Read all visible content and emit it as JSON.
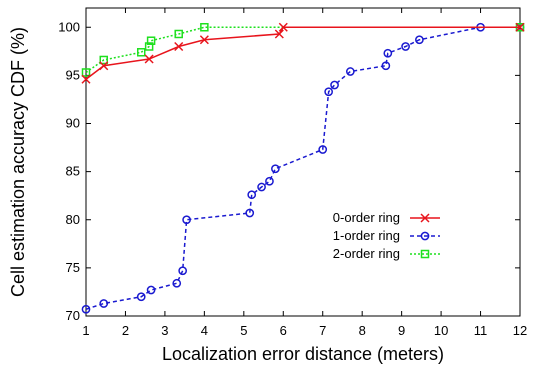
{
  "chart_data": {
    "type": "line",
    "xlabel": "Localization error distance (meters)",
    "ylabel": "Cell estimation accuracy CDF (%)",
    "xlim": [
      1,
      12
    ],
    "ylim": [
      70,
      102
    ],
    "xticks": [
      1,
      2,
      3,
      4,
      5,
      6,
      7,
      8,
      9,
      10,
      11,
      12
    ],
    "yticks": [
      70,
      75,
      80,
      85,
      90,
      95,
      100
    ],
    "grid": false,
    "legend_position": "right-middle",
    "series": [
      {
        "name": "0-order ring",
        "color": "#e8141c",
        "marker": "x",
        "dash": "solid",
        "x": [
          1.0,
          1.45,
          2.6,
          3.35,
          4.0,
          5.9,
          6.0,
          12.0
        ],
        "y": [
          94.6,
          96.0,
          96.7,
          98.0,
          98.7,
          99.3,
          100.0,
          100.0
        ]
      },
      {
        "name": "1-order ring",
        "color": "#1a1ad0",
        "marker": "circle",
        "dash": "dashed",
        "x": [
          1.0,
          1.45,
          2.4,
          2.65,
          3.3,
          3.45,
          3.55,
          5.15,
          5.2,
          5.45,
          5.65,
          5.8,
          7.0,
          7.15,
          7.3,
          7.7,
          8.6,
          8.65,
          9.1,
          9.45,
          11.0,
          12.0
        ],
        "y": [
          70.7,
          71.3,
          72.0,
          72.7,
          73.4,
          74.7,
          80.0,
          80.7,
          82.6,
          83.4,
          84.0,
          85.3,
          87.3,
          93.3,
          94.0,
          95.4,
          96.0,
          97.3,
          98.0,
          98.7,
          100.0,
          100.0
        ],
        "x_vertical_steps": [
          [
            2.6,
            72.0,
            72.7
          ],
          [
            3.35,
            73.4,
            74.7
          ],
          [
            3.5,
            74.7,
            80.0
          ],
          [
            5.2,
            80.7,
            82.6
          ],
          [
            7.05,
            87.3,
            93.3
          ],
          [
            8.65,
            96.0,
            97.3
          ]
        ]
      },
      {
        "name": "2-order ring",
        "color": "#1ee01e",
        "marker": "square",
        "dash": "dotted",
        "x": [
          1.0,
          1.45,
          2.4,
          2.6,
          2.65,
          3.35,
          4.0,
          12.0
        ],
        "y": [
          95.3,
          96.6,
          97.4,
          98.0,
          98.6,
          99.3,
          100.0,
          100.0
        ]
      }
    ]
  }
}
